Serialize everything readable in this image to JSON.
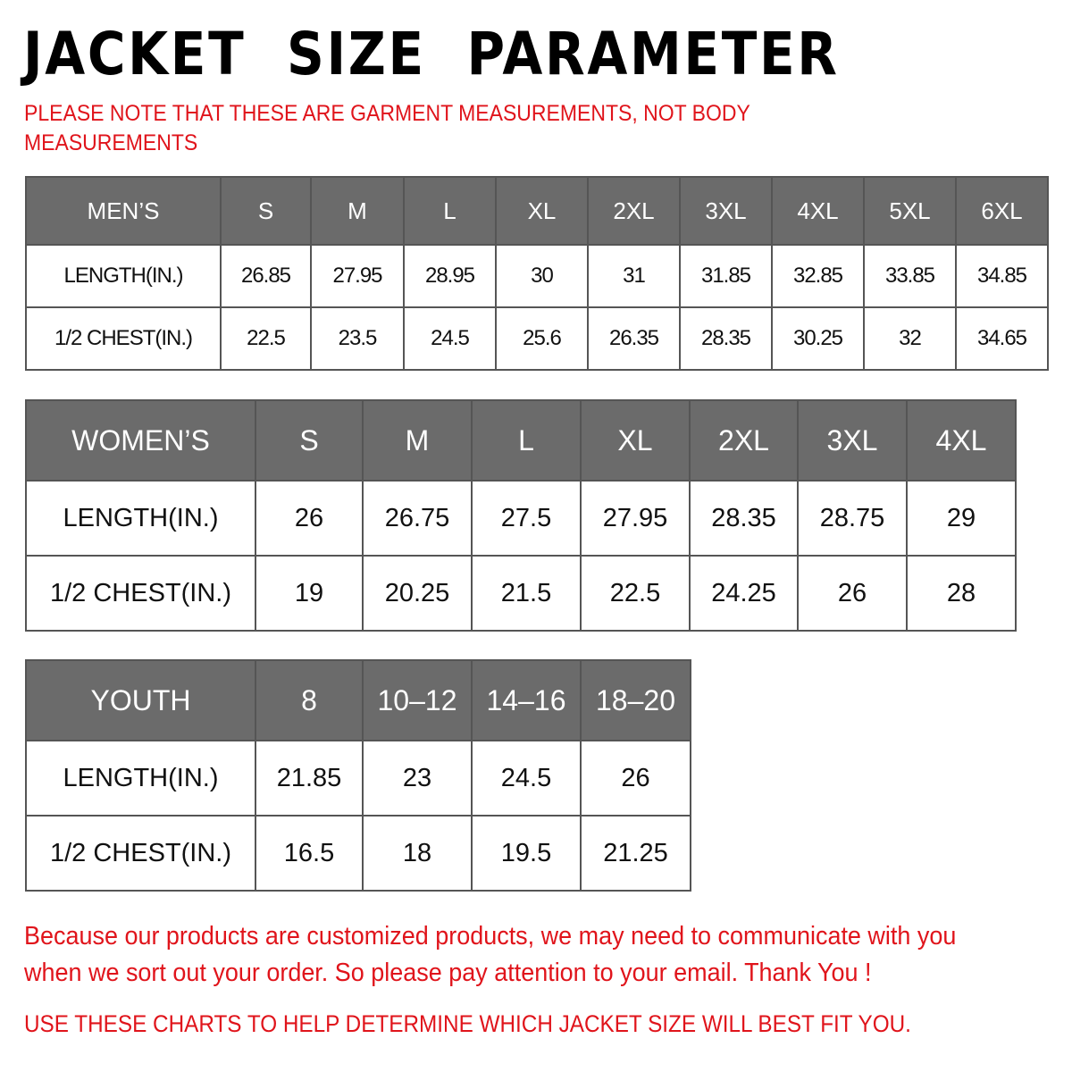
{
  "title": "JACKET  SIZE  PARAMETER",
  "note": "PLEASE NOTE THAT THESE ARE GARMENT MEASUREMENTS, NOT BODY MEASUREMENTS",
  "colors": {
    "header_bg": "#6b6b6b",
    "accent_red": "#e0141b"
  },
  "tables": {
    "men": {
      "header": [
        "MEN’S",
        "S",
        "M",
        "L",
        "XL",
        "2XL",
        "3XL",
        "4XL",
        "5XL",
        "6XL"
      ],
      "rows": [
        [
          "LENGTH(IN.)",
          "26.85",
          "27.95",
          "28.95",
          "30",
          "31",
          "31.85",
          "32.85",
          "33.85",
          "34.85"
        ],
        [
          "1/2 CHEST(IN.)",
          "22.5",
          "23.5",
          "24.5",
          "25.6",
          "26.35",
          "28.35",
          "30.25",
          "32",
          "34.65"
        ]
      ]
    },
    "women": {
      "header": [
        "WOMEN’S",
        "S",
        "M",
        "L",
        "XL",
        "2XL",
        "3XL",
        "4XL"
      ],
      "rows": [
        [
          "LENGTH(IN.)",
          "26",
          "26.75",
          "27.5",
          "27.95",
          "28.35",
          "28.75",
          "29"
        ],
        [
          "1/2 CHEST(IN.)",
          "19",
          "20.25",
          "21.5",
          "22.5",
          "24.25",
          "26",
          "28"
        ]
      ]
    },
    "youth": {
      "header": [
        "YOUTH",
        "8",
        "10–12",
        "14–16",
        "18–20"
      ],
      "rows": [
        [
          "LENGTH(IN.)",
          "21.85",
          "23",
          "24.5",
          "26"
        ],
        [
          "1/2 CHEST(IN.)",
          "16.5",
          "18",
          "19.5",
          "21.25"
        ]
      ]
    }
  },
  "message": "Because our products are customized products, we may need to communicate with you when we sort out your order. So please pay attention to your email. Thank You !",
  "footer": "USE THESE CHARTS TO HELP DETERMINE WHICH JACKET SIZE WILL BEST FIT YOU."
}
